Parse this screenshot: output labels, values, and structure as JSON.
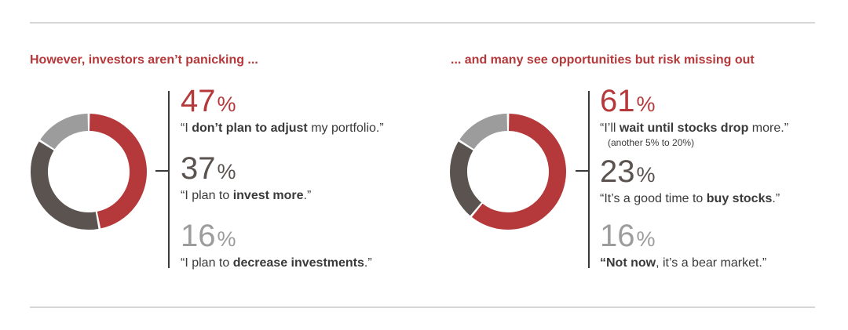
{
  "chart_data": [
    {
      "type": "pie",
      "title": "However, investors aren’t panicking ...",
      "categories": [
        "“I don’t plan to adjust my portfolio.”",
        "“I plan to invest more.”",
        "“I plan to decrease investments.”"
      ],
      "values": [
        47,
        37,
        16
      ],
      "colors": [
        "#b5393b",
        "#5a534f",
        "#9c9c9c"
      ],
      "items": [
        {
          "value": "47",
          "unit": "%",
          "q_pre": "“I ",
          "q_bold": "don’t plan to adjust",
          "q_post": " my portfolio.”",
          "q_bold2": "",
          "q_post2": "",
          "sub": ""
        },
        {
          "value": "37",
          "unit": "%",
          "q_pre": "“I plan to ",
          "q_bold": "invest more",
          "q_post": ".”",
          "q_bold2": "",
          "q_post2": "",
          "sub": ""
        },
        {
          "value": "16",
          "unit": "%",
          "q_pre": "“I plan to ",
          "q_bold": "decrease investments",
          "q_post": ".”",
          "q_bold2": "",
          "q_post2": "",
          "sub": ""
        }
      ]
    },
    {
      "type": "pie",
      "title": "... and many see opportunities but risk missing out",
      "categories": [
        "“I’ll wait until stocks drop more.”",
        "“It’s a good time to buy stocks.”",
        "“Not now, it’s a bear market.”"
      ],
      "values": [
        61,
        23,
        16
      ],
      "colors": [
        "#b5393b",
        "#5a534f",
        "#9c9c9c"
      ],
      "items": [
        {
          "value": "61",
          "unit": "%",
          "q_pre": "“I’ll ",
          "q_bold": "wait until stocks drop",
          "q_post": " more.”",
          "q_bold2": "",
          "q_post2": "",
          "sub": "(another 5% to 20%)"
        },
        {
          "value": "23",
          "unit": "%",
          "q_pre": "“It’s a good time to ",
          "q_bold": "buy stocks",
          "q_post": ".”",
          "q_bold2": "",
          "q_post2": "",
          "sub": ""
        },
        {
          "value": "16",
          "unit": "%",
          "q_pre": "",
          "q_bold": "“Not now",
          "q_post": ", it’s a bear market.”",
          "q_bold2": "",
          "q_post2": "",
          "sub": ""
        }
      ]
    }
  ]
}
